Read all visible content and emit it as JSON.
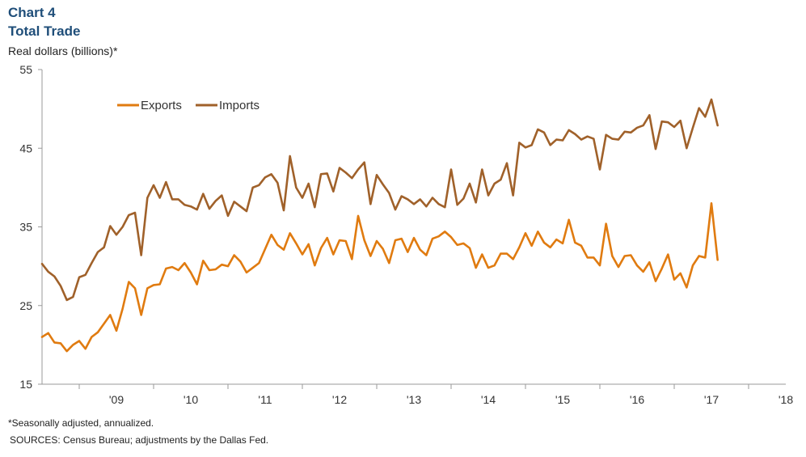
{
  "header": {
    "chart_label": "Chart 4",
    "title": "Total Trade",
    "units": "Real dollars (billions)*"
  },
  "notes": {
    "footnote": "*Seasonally adjusted, annualized.",
    "sources": "SOURCES: Census Bureau; adjustments by the Dallas Fed."
  },
  "colors": {
    "exports": "#e07b10",
    "imports": "#a0612a",
    "axis": "#9a9a9a"
  },
  "chart_data": {
    "type": "line",
    "title": "Total Trade",
    "ylabel": "Real dollars (billions)*",
    "ylim": [
      15,
      55
    ],
    "yticks": [
      15,
      25,
      35,
      45,
      55
    ],
    "xlim": [
      "2008-07",
      "2018-07"
    ],
    "x_start": "2008-07",
    "x_frequency": "monthly",
    "xtick_labels": [
      "'09",
      "'10",
      "'11",
      "'12",
      "'13",
      "'14",
      "'15",
      "'16",
      "'17",
      "'18"
    ],
    "grid": false,
    "legend_position": "top-left",
    "series": [
      {
        "name": "Exports",
        "color": "#e07b10",
        "values": [
          21.0,
          21.5,
          20.3,
          20.2,
          19.2,
          20.0,
          20.5,
          19.5,
          21.0,
          21.6,
          22.7,
          23.8,
          21.8,
          24.6,
          28.0,
          27.2,
          23.8,
          27.2,
          27.6,
          27.7,
          29.7,
          29.9,
          29.5,
          30.4,
          29.2,
          27.7,
          30.7,
          29.5,
          29.6,
          30.2,
          30.0,
          31.4,
          30.6,
          29.2,
          29.8,
          30.4,
          32.2,
          34.0,
          32.7,
          32.1,
          34.2,
          32.9,
          31.5,
          32.8,
          30.1,
          32.3,
          33.6,
          31.5,
          33.3,
          33.2,
          30.9,
          36.4,
          33.3,
          31.3,
          33.2,
          32.2,
          30.4,
          33.3,
          33.5,
          31.8,
          33.6,
          32.1,
          31.4,
          33.5,
          33.8,
          34.4,
          33.7,
          32.7,
          32.9,
          32.3,
          29.8,
          31.5,
          29.8,
          30.1,
          31.6,
          31.6,
          30.9,
          32.4,
          34.2,
          32.6,
          34.4,
          33.0,
          32.4,
          33.4,
          32.9,
          35.9,
          33.0,
          32.6,
          31.1,
          31.1,
          30.1,
          35.4,
          31.3,
          29.9,
          31.3,
          31.4,
          30.1,
          29.3,
          30.5,
          28.1,
          29.7,
          31.5,
          28.3,
          29.1,
          27.3,
          30.1,
          31.3,
          31.1,
          38.0,
          30.8
        ]
      },
      {
        "name": "Imports",
        "color": "#a0612a",
        "values": [
          30.3,
          29.3,
          28.7,
          27.5,
          25.7,
          26.1,
          28.6,
          28.9,
          30.4,
          31.8,
          32.4,
          35.1,
          34.0,
          35.0,
          36.5,
          36.8,
          31.4,
          38.7,
          40.3,
          38.7,
          40.7,
          38.5,
          38.5,
          37.8,
          37.6,
          37.2,
          39.2,
          37.3,
          38.3,
          39.0,
          36.4,
          38.2,
          37.6,
          37.0,
          40.0,
          40.3,
          41.3,
          41.7,
          40.6,
          37.1,
          44.0,
          40.0,
          38.7,
          40.5,
          37.5,
          41.7,
          41.8,
          39.5,
          42.5,
          41.9,
          41.2,
          42.3,
          43.2,
          37.9,
          41.6,
          40.4,
          39.3,
          37.2,
          38.9,
          38.5,
          37.9,
          38.5,
          37.6,
          38.7,
          37.9,
          37.5,
          42.3,
          37.8,
          38.6,
          40.5,
          38.1,
          42.3,
          39.0,
          40.5,
          41.0,
          43.1,
          39.0,
          45.7,
          45.1,
          45.4,
          47.4,
          47.0,
          45.4,
          46.1,
          46.0,
          47.3,
          46.8,
          46.1,
          46.5,
          46.2,
          42.3,
          46.7,
          46.2,
          46.1,
          47.1,
          47.0,
          47.6,
          47.9,
          49.2,
          44.9,
          48.4,
          48.3,
          47.7,
          48.5,
          45.0,
          47.6,
          50.1,
          49.0,
          51.2,
          47.9
        ]
      }
    ]
  }
}
